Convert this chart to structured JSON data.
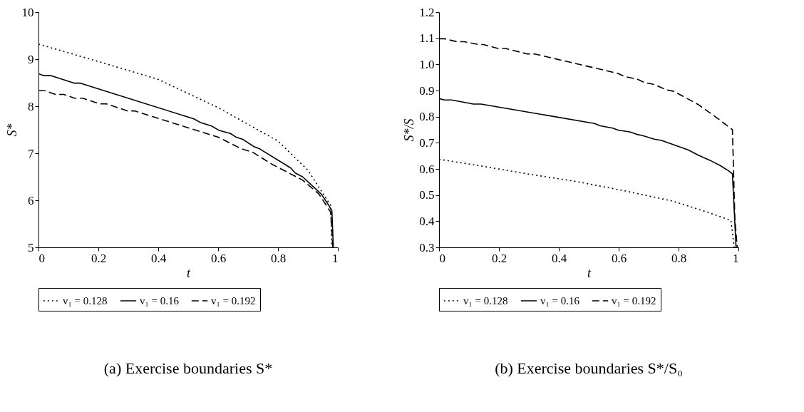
{
  "chart_data": [
    {
      "type": "line",
      "title": "(a) Exercise boundaries S*",
      "xlabel": "t",
      "ylabel": "S*",
      "xlim": [
        0,
        1
      ],
      "ylim": [
        5,
        10
      ],
      "xticks": [
        0,
        0.2,
        0.4,
        0.6,
        0.8,
        1
      ],
      "yticks": [
        5,
        6,
        7,
        8,
        9,
        10
      ],
      "grid": false,
      "legend": "bottom",
      "series": [
        {
          "name": "v₁ = 0.128",
          "color": "#000000",
          "line_style": "dotted",
          "x": [
            0,
            0.2,
            0.4,
            0.6,
            0.8,
            0.9,
            0.976,
            0.98
          ],
          "values": [
            9.32,
            8.95,
            8.57,
            7.97,
            7.26,
            6.64,
            5.89,
            5.0
          ]
        },
        {
          "name": "v₁ = 0.16",
          "color": "#000000",
          "line_style": "solid",
          "x": [
            0,
            0.017,
            0.041,
            0.12,
            0.14,
            0.519,
            0.542,
            0.578,
            0.602,
            0.641,
            0.661,
            0.681,
            0.72,
            0.74,
            0.842,
            0.858,
            0.882,
            0.945,
            0.968,
            0.98,
            0.985
          ],
          "values": [
            8.69,
            8.65,
            8.65,
            8.49,
            8.49,
            7.73,
            7.65,
            7.58,
            7.49,
            7.42,
            7.34,
            7.3,
            7.14,
            7.09,
            6.69,
            6.58,
            6.5,
            6.13,
            5.91,
            5.78,
            5.0
          ]
        },
        {
          "name": "v₁ = 0.192",
          "color": "#000000",
          "line_style": "dashed",
          "x": [
            0,
            0.021,
            0.057,
            0.085,
            0.12,
            0.148,
            0.203,
            0.227,
            0.297,
            0.321,
            0.601,
            0.676,
            0.716,
            0.779,
            0.882,
            0.937,
            0.976,
            0.983
          ],
          "values": [
            8.33,
            8.33,
            8.25,
            8.25,
            8.17,
            8.17,
            8.05,
            8.05,
            7.9,
            7.9,
            7.34,
            7.1,
            7.02,
            6.77,
            6.43,
            6.13,
            5.75,
            5.0
          ]
        }
      ]
    },
    {
      "type": "line",
      "title": "(b) Exercise boundaries S*/S₀",
      "xlabel": "t",
      "ylabel": "S*/S",
      "xlim": [
        0,
        1
      ],
      "ylim": [
        0.3,
        1.2
      ],
      "xticks": [
        0,
        0.2,
        0.4,
        0.6,
        0.8,
        1
      ],
      "yticks": [
        0.3,
        0.4,
        0.5,
        0.6,
        0.7,
        0.8,
        0.9,
        {
          "value": 1,
          "label": "1.0"
        },
        1.1,
        1.2
      ],
      "grid": false,
      "legend": "bottom",
      "series": [
        {
          "name": "v₁ = 0.128",
          "color": "#000000",
          "line_style": "dotted",
          "x": [
            0,
            0.132,
            0.295,
            0.458,
            0.621,
            0.784,
            0.906,
            0.975,
            0.986
          ],
          "values": [
            0.637,
            0.613,
            0.581,
            0.552,
            0.516,
            0.476,
            0.431,
            0.403,
            0.3
          ]
        },
        {
          "name": "v₁ = 0.16",
          "color": "#000000",
          "line_style": "solid",
          "x": [
            0,
            0.018,
            0.042,
            0.115,
            0.14,
            0.519,
            0.539,
            0.58,
            0.6,
            0.637,
            0.661,
            0.678,
            0.719,
            0.743,
            0.832,
            0.865,
            0.905,
            0.939,
            0.963,
            0.98,
            0.992
          ],
          "values": [
            0.869,
            0.864,
            0.864,
            0.848,
            0.848,
            0.774,
            0.765,
            0.756,
            0.748,
            0.742,
            0.732,
            0.728,
            0.714,
            0.709,
            0.673,
            0.653,
            0.633,
            0.613,
            0.596,
            0.581,
            0.3
          ]
        },
        {
          "name": "v₁ = 0.192",
          "color": "#000000",
          "line_style": "dashed",
          "x": [
            0,
            0.018,
            0.059,
            0.083,
            0.132,
            0.148,
            0.197,
            0.222,
            0.295,
            0.319,
            0.596,
            0.621,
            0.661,
            0.686,
            0.719,
            0.759,
            0.784,
            0.865,
            0.93,
            0.98,
            0.988,
            0.996
          ],
          "values": [
            1.098,
            1.098,
            1.087,
            1.087,
            1.076,
            1.076,
            1.061,
            1.061,
            1.04,
            1.04,
            0.966,
            0.953,
            0.944,
            0.931,
            0.923,
            0.903,
            0.897,
            0.847,
            0.794,
            0.75,
            0.411,
            0.3
          ]
        }
      ]
    }
  ]
}
